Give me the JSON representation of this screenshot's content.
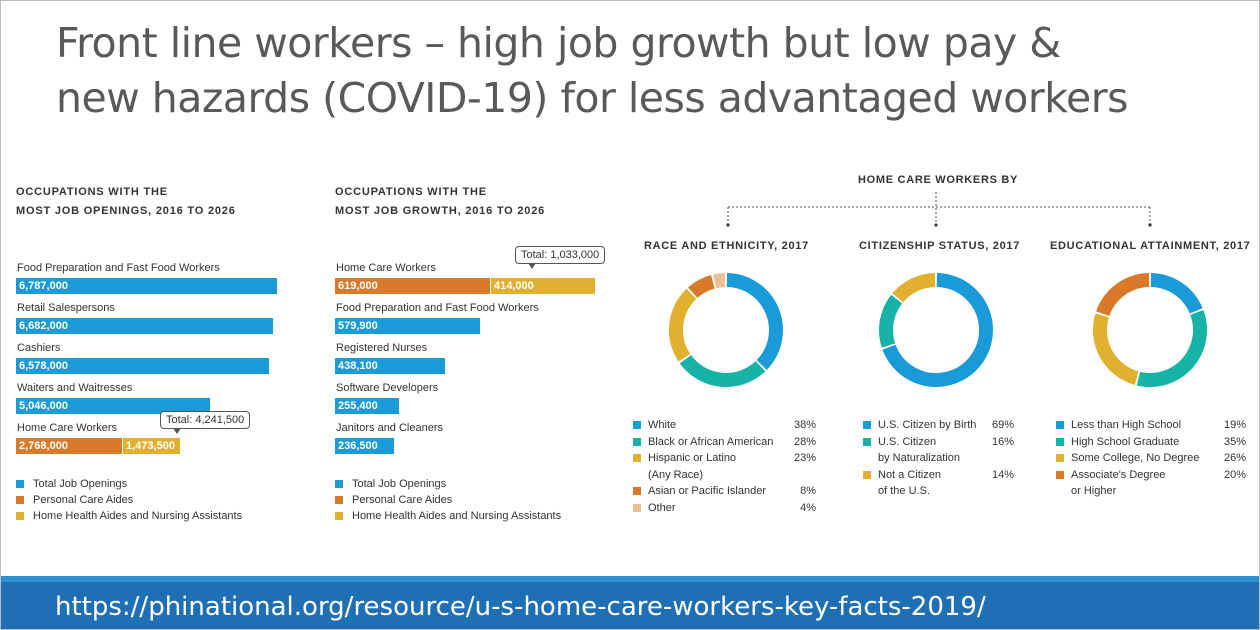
{
  "title_line1": "Front line workers – high job growth but low pay &",
  "title_line2": "new hazards (COVID-19) for less advantaged workers",
  "footer_url": "https://phinational.org/resource/u-s-home-care-workers-key-facts-2019/",
  "colors": {
    "blue": "#1a9ad7",
    "orange": "#d87a2a",
    "gold": "#e0b02e",
    "teal": "#17b3a6",
    "peach": "#ebbf95",
    "footer": "#1f6fb4"
  },
  "chart_data": [
    {
      "type": "bar",
      "title_line1": "OCCUPATIONS WITH THE",
      "title_line2": "MOST JOB OPENINGS, 2016 TO 2026",
      "categories": [
        "Food Preparation and Fast Food Workers",
        "Retail Salespersons",
        "Cashiers",
        "Waiters and Waitresses",
        "Home Care Workers"
      ],
      "series": [
        {
          "name": "Total Job Openings",
          "values": [
            6787000,
            6682000,
            6578000,
            5046000,
            null
          ],
          "labels": [
            "6,787,000",
            "6,682,000",
            "6,578,000",
            "5,046,000",
            ""
          ]
        },
        {
          "name": "Personal Care Aides",
          "values": [
            null,
            null,
            null,
            null,
            2768000
          ],
          "labels": [
            "",
            "",
            "",
            "",
            "2,768,000"
          ]
        },
        {
          "name": "Home Health Aides and Nursing Assistants",
          "values": [
            null,
            null,
            null,
            null,
            1473500
          ],
          "labels": [
            "",
            "",
            "",
            "",
            "1,473,500"
          ]
        }
      ],
      "callout": "Total: 4,241,500"
    },
    {
      "type": "bar",
      "title_line1": "OCCUPATIONS WITH THE",
      "title_line2": "MOST JOB GROWTH, 2016 TO 2026",
      "categories": [
        "Home Care Workers",
        "Food Preparation and Fast Food Workers",
        "Registered Nurses",
        "Software Developers",
        "Janitors and Cleaners"
      ],
      "series": [
        {
          "name": "Total Job Openings",
          "values": [
            null,
            579900,
            438100,
            255400,
            236500
          ],
          "labels": [
            "",
            "579,900",
            "438,100",
            "255,400",
            "236,500"
          ]
        },
        {
          "name": "Personal Care Aides",
          "values": [
            619000,
            null,
            null,
            null,
            null
          ],
          "labels": [
            "619,000",
            "",
            "",
            "",
            ""
          ]
        },
        {
          "name": "Home Health Aides and Nursing Assistants",
          "values": [
            414000,
            null,
            null,
            null,
            null
          ],
          "labels": [
            "414,000",
            "",
            "",
            "",
            ""
          ]
        }
      ],
      "callout": "Total: 1,033,000"
    },
    {
      "type": "pie",
      "title": "RACE AND ETHNICITY, 2017",
      "slices": [
        {
          "label": "White",
          "value": 38,
          "pct": "38%",
          "color": "#1a9ad7"
        },
        {
          "label": "Black or African American",
          "value": 28,
          "pct": "28%",
          "color": "#17b3a6"
        },
        {
          "label": "Hispanic or Latino",
          "label2": "(Any Race)",
          "value": 23,
          "pct": "23%",
          "color": "#e0b02e"
        },
        {
          "label": "Asian or Pacific Islander",
          "value": 8,
          "pct": "8%",
          "color": "#d87a2a"
        },
        {
          "label": "Other",
          "value": 4,
          "pct": "4%",
          "color": "#ebbf95"
        }
      ]
    },
    {
      "type": "pie",
      "title": "CITIZENSHIP STATUS, 2017",
      "slices": [
        {
          "label": "U.S. Citizen by Birth",
          "value": 69,
          "pct": "69%",
          "color": "#1a9ad7"
        },
        {
          "label": "U.S. Citizen",
          "label2": "by Naturalization",
          "value": 16,
          "pct": "16%",
          "color": "#17b3a6"
        },
        {
          "label": "Not a Citizen",
          "label2": "of the U.S.",
          "value": 14,
          "pct": "14%",
          "color": "#e0b02e"
        }
      ]
    },
    {
      "type": "pie",
      "title": "EDUCATIONAL ATTAINMENT, 2017",
      "slices": [
        {
          "label": "Less than High School",
          "value": 19,
          "pct": "19%",
          "color": "#1a9ad7"
        },
        {
          "label": "High School Graduate",
          "value": 35,
          "pct": "35%",
          "color": "#17b3a6"
        },
        {
          "label": "Some College, No Degree",
          "value": 26,
          "pct": "26%",
          "color": "#e0b02e"
        },
        {
          "label": "Associate's Degree",
          "label2": "or Higher",
          "value": 20,
          "pct": "20%",
          "color": "#d87a2a"
        }
      ]
    }
  ],
  "donut_group_heading": "HOME CARE WORKERS BY"
}
